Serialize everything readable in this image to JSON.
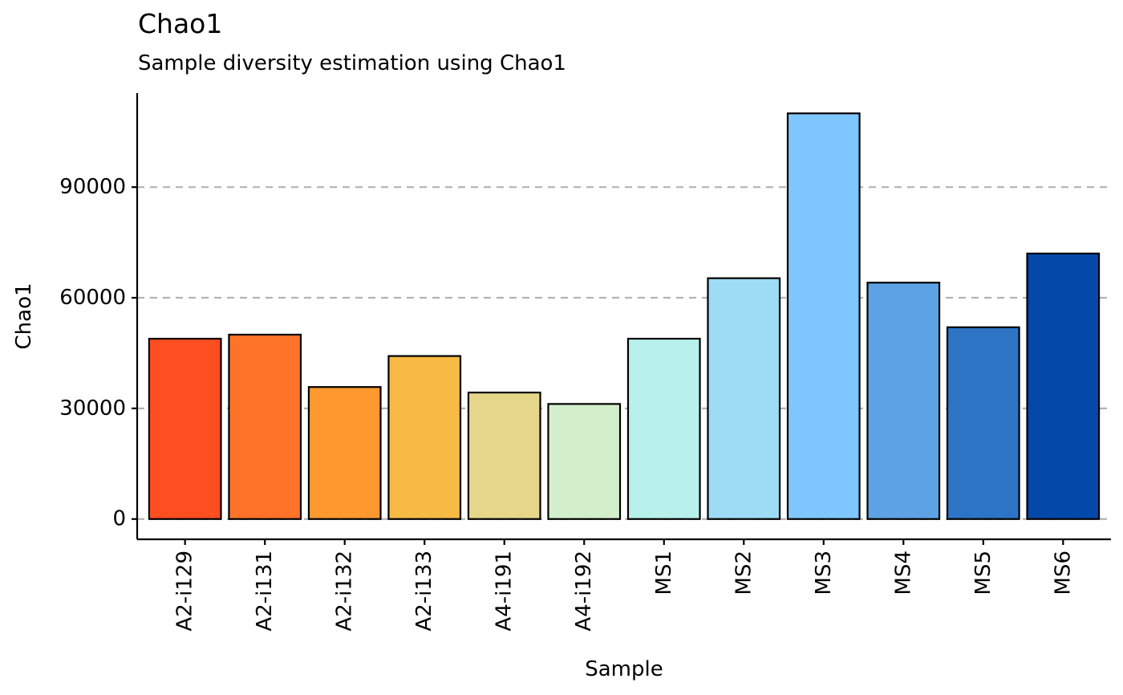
{
  "chart_data": {
    "type": "bar",
    "title": "Chao1",
    "subtitle": "Sample diversity estimation using Chao1",
    "xlabel": "Sample",
    "ylabel": "Chao1",
    "categories": [
      "A2-i129",
      "A2-i131",
      "A2-i132",
      "A2-i133",
      "A4-i191",
      "A4-i192",
      "MS1",
      "MS2",
      "MS3",
      "MS4",
      "MS5",
      "MS6"
    ],
    "values": [
      48900,
      50000,
      35800,
      44200,
      34300,
      31200,
      48900,
      65300,
      110000,
      64100,
      52000,
      72000
    ],
    "colors": [
      "#FF4E20",
      "#FF7328",
      "#FF982E",
      "#F7BA45",
      "#E5D68A",
      "#D3EECB",
      "#B8F1EC",
      "#9EDBF5",
      "#80C6FE",
      "#5CA2E4",
      "#2E74C5",
      "#0448A9"
    ],
    "yticks": [
      0,
      30000,
      60000,
      90000
    ],
    "ylim": [
      -5500,
      115500
    ],
    "grid": "horizontal dashed",
    "legend": "none"
  }
}
